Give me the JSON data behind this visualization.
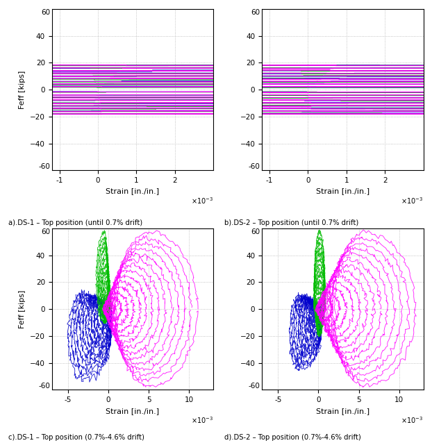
{
  "title_a": "a).DS-1 – Top position (until 0.7% drift)",
  "title_b": "b).DS-2 – Top position (until 0.7% drift)",
  "title_c": "c).DS-1 – Top position (0.7%-4.6% drift)",
  "title_d": "d).DS-2 – Top position (0.7%-4.6% drift)",
  "ylabel": "Feff [kips]",
  "xlabel": "Strain [in./in.]",
  "color_green": "#00bb00",
  "color_magenta": "#ff00ff",
  "color_blue": "#0000cc",
  "background": "#ffffff",
  "grid_color": "#aaaaaa"
}
